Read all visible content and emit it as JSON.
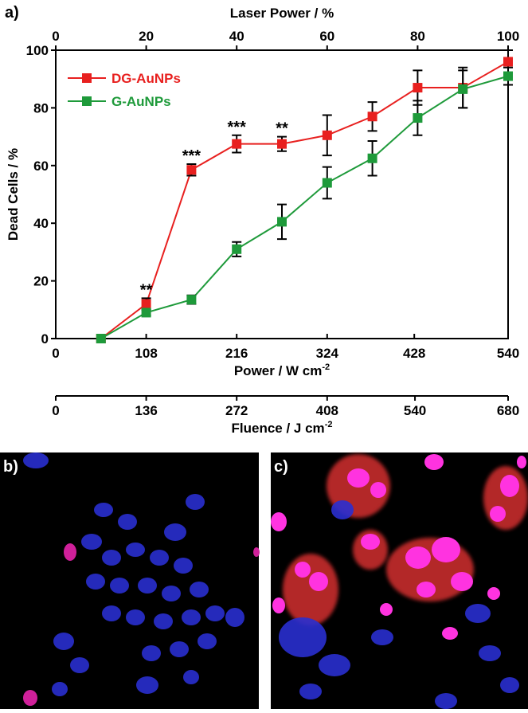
{
  "panel_labels": [
    "a)",
    "b)",
    "c)"
  ],
  "chart_data": {
    "type": "line",
    "x_label": "Laser Power / %",
    "y_label": "Dead Cells / %",
    "x": [
      10,
      20,
      30,
      40,
      50,
      60,
      70,
      80,
      90,
      100
    ],
    "xlim": [
      0,
      100
    ],
    "xticks": [
      0,
      20,
      40,
      60,
      80,
      100
    ],
    "ylim": [
      0,
      100
    ],
    "yticks": [
      0,
      20,
      40,
      60,
      80,
      100
    ],
    "legend": "upper left",
    "series": [
      {
        "name": "DG-AuNPs",
        "color": "#e8201f",
        "values": [
          0,
          12,
          58.5,
          67.5,
          67.5,
          70.5,
          77,
          87,
          87,
          96
        ],
        "errors": [
          0,
          2,
          2,
          3,
          2.5,
          7,
          5,
          6,
          7,
          4
        ]
      },
      {
        "name": "G-AuNPs",
        "color": "#1e9a3a",
        "values": [
          0,
          9,
          13.5,
          31,
          40.5,
          54,
          62.5,
          76.5,
          86.5,
          91
        ],
        "errors": [
          0,
          1,
          1.5,
          2.5,
          6,
          5.5,
          6,
          6,
          6.5,
          3
        ]
      }
    ],
    "annotations": [
      {
        "text": "**",
        "x": 20
      },
      {
        "text": "***",
        "x": 30
      },
      {
        "text": "***",
        "x": 40
      },
      {
        "text": "**",
        "x": 50
      }
    ],
    "power_axis": {
      "label": "Power / W cm",
      "label_sup": "-2",
      "lim": [
        0,
        540
      ],
      "ticks": [
        0,
        108,
        216,
        324,
        428,
        540
      ]
    },
    "fluence_axis": {
      "label": "Fluence / J cm",
      "label_sup": "-2",
      "lim": [
        0,
        680
      ],
      "ticks": [
        0,
        136,
        272,
        408,
        540,
        680
      ]
    }
  }
}
